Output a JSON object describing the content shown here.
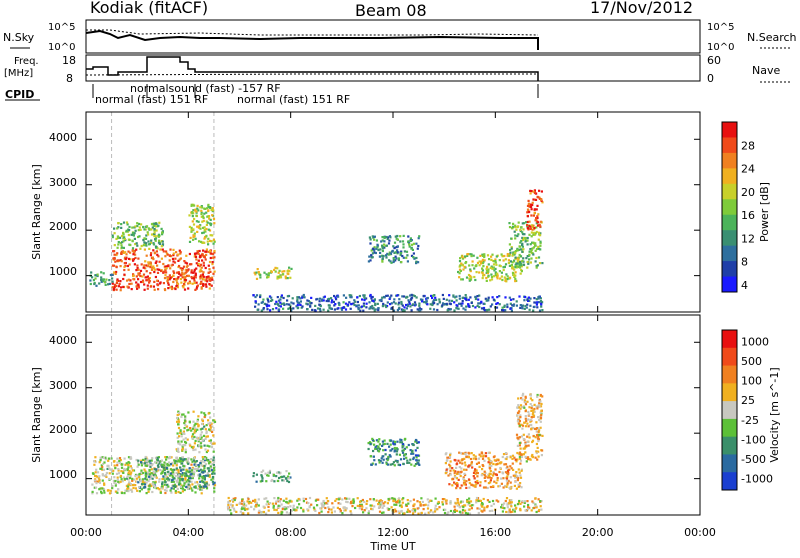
{
  "header": {
    "station": "Kodiak (fitACF)",
    "beam": "Beam 08",
    "date": "17/Nov/2012"
  },
  "noise_panel": {
    "left_label": "N.Sky",
    "right_label": "N.Search",
    "left_ticks": [
      "10^5",
      "10^0"
    ],
    "right_ticks": [
      "10^5",
      "10^0"
    ]
  },
  "freq_panel": {
    "left_label_1": "Freq.",
    "left_label_2": "[MHz]",
    "right_label": "Nave",
    "left_ticks": [
      "18",
      "8"
    ],
    "right_ticks": [
      "60",
      "0"
    ]
  },
  "cpid": {
    "label": "CPID",
    "text_upper": "normalsound (fast) -157 RF",
    "text_lower_1": "normal (fast) 151 RF",
    "text_lower_2": "normal (fast) 151 RF"
  },
  "chart_data": [
    {
      "type": "heatmap",
      "name": "power",
      "ylabel": "Slant Range [km]",
      "ylim": [
        200,
        4600
      ],
      "y_ticks": [
        "1000",
        "2000",
        "3000",
        "4000"
      ],
      "colorbar_label": "Power [dB]",
      "colorbar_ticks": [
        "28",
        "24",
        "20",
        "16",
        "12",
        "8",
        "4"
      ],
      "colors": [
        "#1a1aff",
        "#1f3fa8",
        "#2e6f9e",
        "#3a8f72",
        "#4bb35a",
        "#7ecb3a",
        "#c8d02a",
        "#f0b020",
        "#f08020",
        "#f04a1a",
        "#e81010"
      ],
      "regions": [
        {
          "t0": 1.0,
          "t1": 5.0,
          "r0": 700,
          "r1": 1600,
          "level": 0.85
        },
        {
          "t0": 1.0,
          "t1": 3.0,
          "r0": 1600,
          "r1": 2200,
          "level": 0.45
        },
        {
          "t0": 4.0,
          "t1": 5.0,
          "r0": 1700,
          "r1": 2600,
          "level": 0.55
        },
        {
          "t0": 0.1,
          "t1": 1.0,
          "r0": 800,
          "r1": 1100,
          "level": 0.35
        },
        {
          "t0": 6.5,
          "t1": 8.0,
          "r0": 950,
          "r1": 1200,
          "level": 0.55
        },
        {
          "t0": 11.0,
          "t1": 13.0,
          "r0": 1300,
          "r1": 1900,
          "level": 0.3
        },
        {
          "t0": 14.5,
          "t1": 17.0,
          "r0": 900,
          "r1": 1500,
          "level": 0.55
        },
        {
          "t0": 16.5,
          "t1": 17.8,
          "r0": 1200,
          "r1": 2200,
          "level": 0.45
        },
        {
          "t0": 17.2,
          "t1": 17.8,
          "r0": 2000,
          "r1": 2900,
          "level": 0.85
        },
        {
          "t0": 6.5,
          "t1": 17.8,
          "r0": 250,
          "r1": 600,
          "level": 0.2
        }
      ]
    },
    {
      "type": "heatmap",
      "name": "velocity",
      "ylabel": "Slant Range [km]",
      "ylim": [
        200,
        4600
      ],
      "y_ticks": [
        "1000",
        "2000",
        "3000",
        "4000"
      ],
      "colorbar_label": "Velocity [m s^-1]",
      "colorbar_ticks": [
        "1000",
        "500",
        "100",
        "25",
        "-25",
        "-100",
        "-500",
        "-1000"
      ],
      "colors": [
        "#1a3fd0",
        "#2a6aa0",
        "#3a8f6a",
        "#5cc038",
        "#c8c8c0",
        "#f0b020",
        "#f08020",
        "#f04a1a",
        "#e81010"
      ],
      "regions": [
        {
          "t0": 0.2,
          "t1": 5.0,
          "r0": 700,
          "r1": 1500,
          "level": 0.5
        },
        {
          "t0": 2.0,
          "t1": 5.0,
          "r0": 800,
          "r1": 1500,
          "level": 0.35
        },
        {
          "t0": 3.5,
          "t1": 5.0,
          "r0": 1600,
          "r1": 2500,
          "level": 0.5
        },
        {
          "t0": 6.5,
          "t1": 8.0,
          "r0": 950,
          "r1": 1200,
          "level": 0.38
        },
        {
          "t0": 11.0,
          "t1": 13.0,
          "r0": 1300,
          "r1": 1900,
          "level": 0.25
        },
        {
          "t0": 14.0,
          "t1": 17.0,
          "r0": 800,
          "r1": 1600,
          "level": 0.65
        },
        {
          "t0": 16.8,
          "t1": 17.8,
          "r0": 1400,
          "r1": 2900,
          "level": 0.6
        },
        {
          "t0": 5.5,
          "t1": 17.8,
          "r0": 250,
          "r1": 600,
          "level": 0.55
        }
      ]
    }
  ],
  "x_axis": {
    "label": "Time UT",
    "ticks": [
      "00:00",
      "04:00",
      "08:00",
      "12:00",
      "16:00",
      "20:00",
      "00:00"
    ],
    "range_hours": [
      0,
      24
    ]
  }
}
